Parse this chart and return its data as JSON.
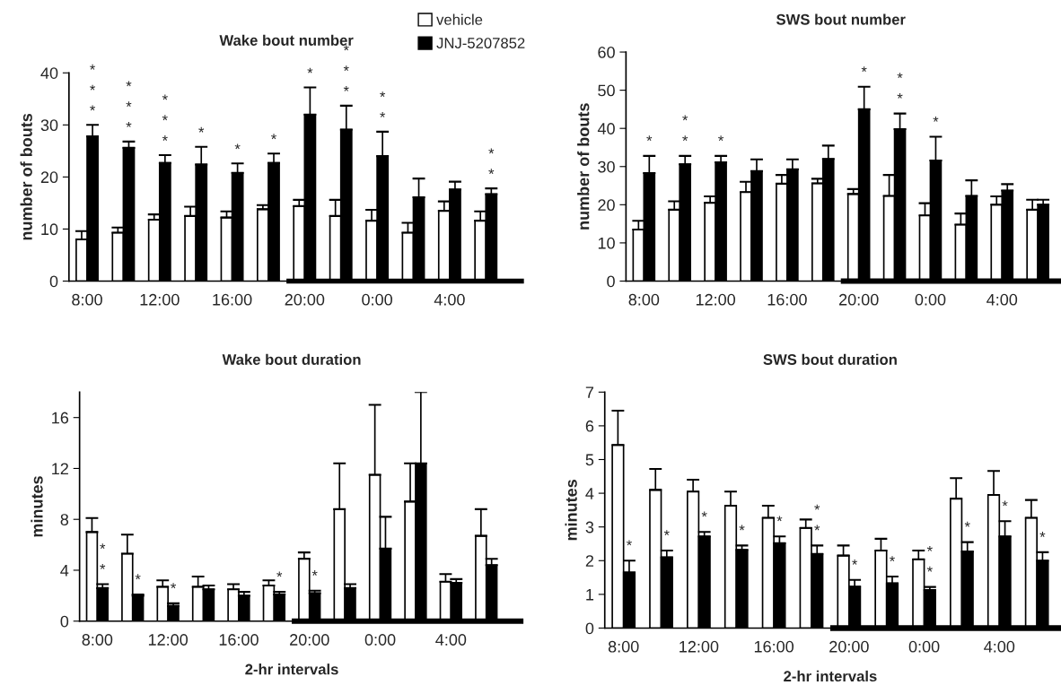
{
  "chart_data": [
    {
      "type": "bar",
      "title": "Wake bout number",
      "ylabel": "number of bouts",
      "legend": "top right",
      "categories": [
        "8:00",
        null,
        "12:00",
        null,
        "16:00",
        null,
        "20:00",
        null,
        "0:00",
        null,
        "4:00",
        null
      ],
      "ylim": [
        0,
        40
      ],
      "yticks": [
        0,
        10,
        20,
        30,
        40
      ],
      "series": [
        {
          "name": "vehicle",
          "color": "#ffffff",
          "values": [
            8.0,
            9.3,
            11.8,
            12.5,
            12.2,
            13.8,
            14.4,
            12.5,
            11.6,
            9.3,
            13.5,
            11.6
          ],
          "errors": [
            [
              8.0,
              9.6
            ],
            [
              9.3,
              10.3
            ],
            [
              11.8,
              12.8
            ],
            [
              12.5,
              14.3
            ],
            [
              12.2,
              13.4
            ],
            [
              13.8,
              14.6
            ],
            [
              14.4,
              15.6
            ],
            [
              12.5,
              15.6
            ],
            [
              11.6,
              13.7
            ],
            [
              9.3,
              11.2
            ],
            [
              13.5,
              15.3
            ],
            [
              11.6,
              13.4
            ]
          ]
        },
        {
          "name": "JNJ-5207852",
          "color": "#000000",
          "values": [
            27.8,
            25.6,
            22.7,
            22.4,
            20.8,
            22.7,
            32.0,
            29.1,
            24.0,
            16.1,
            17.6,
            16.7
          ],
          "errors": [
            [
              27.8,
              30.0
            ],
            [
              25.6,
              26.8
            ],
            [
              22.7,
              24.2
            ],
            [
              22.4,
              25.8
            ],
            [
              20.8,
              22.6
            ],
            [
              22.7,
              24.5
            ],
            [
              32.0,
              37.2
            ],
            [
              29.1,
              33.7
            ],
            [
              24.0,
              28.7
            ],
            [
              16.1,
              19.7
            ],
            [
              17.6,
              19.1
            ],
            [
              16.7,
              17.8
            ]
          ],
          "value_labels": [
            "*\n*\n*",
            "*\n*\n*",
            "*\n*\n*",
            "*",
            "*",
            "*",
            "*",
            "*\n*\n*",
            "*\n*",
            null,
            null,
            "*\n*"
          ]
        }
      ]
    },
    {
      "type": "bar",
      "title": "SWS bout number",
      "ylabel": "number of bouts",
      "categories": [
        "8:00",
        null,
        "12:00",
        null,
        "16:00",
        null,
        "20:00",
        null,
        "0:00",
        null,
        "4:00",
        null
      ],
      "ylim": [
        0,
        60
      ],
      "yticks": [
        0,
        10,
        20,
        30,
        40,
        50,
        60
      ],
      "series": [
        {
          "color": "#ffffff",
          "values": [
            13.5,
            18.7,
            20.5,
            23.3,
            25.5,
            25.6,
            22.8,
            22.3,
            17.2,
            14.8,
            20.0,
            18.7
          ],
          "errors": [
            [
              13.5,
              15.8
            ],
            [
              18.7,
              20.9
            ],
            [
              20.5,
              22.2
            ],
            [
              23.3,
              26.0
            ],
            [
              25.5,
              27.8
            ],
            [
              25.6,
              26.8
            ],
            [
              22.8,
              24.1
            ],
            [
              22.3,
              27.8
            ],
            [
              17.2,
              20.4
            ],
            [
              14.8,
              17.7
            ],
            [
              20.0,
              22.2
            ],
            [
              18.7,
              21.3
            ]
          ]
        },
        {
          "color": "#000000",
          "values": [
            28.3,
            30.6,
            31.1,
            28.8,
            29.3,
            32.0,
            45.0,
            39.8,
            31.6,
            22.3,
            23.7,
            20.0
          ],
          "errors": [
            [
              28.3,
              32.8
            ],
            [
              30.6,
              32.8
            ],
            [
              31.1,
              32.8
            ],
            [
              28.8,
              31.9
            ],
            [
              29.3,
              31.9
            ],
            [
              32.0,
              35.5
            ],
            [
              45.0,
              50.9
            ],
            [
              39.8,
              43.9
            ],
            [
              31.6,
              37.8
            ],
            [
              22.3,
              26.4
            ],
            [
              23.7,
              25.4
            ],
            [
              20.0,
              21.3
            ]
          ],
          "value_labels": [
            "*",
            "*\n*",
            "*",
            null,
            null,
            null,
            "*",
            "*\n*",
            "*",
            null,
            null,
            null
          ]
        }
      ]
    },
    {
      "type": "bar",
      "title": "Wake bout duration",
      "ylabel": "minutes",
      "xlabel": "2-hr intervals",
      "categories": [
        "8:00",
        null,
        "12:00",
        null,
        "16:00",
        null,
        "20:00",
        null,
        "0:00",
        null,
        "4:00",
        null
      ],
      "ylim": [
        0,
        18
      ],
      "yticks": [
        0,
        4,
        8,
        12,
        16
      ],
      "series": [
        {
          "color": "#ffffff",
          "values": [
            7.0,
            5.3,
            2.7,
            2.7,
            2.5,
            2.8,
            4.9,
            8.8,
            11.5,
            9.4,
            3.1,
            6.7
          ],
          "errors": [
            [
              7.0,
              8.1
            ],
            [
              5.3,
              6.8
            ],
            [
              2.7,
              3.2
            ],
            [
              2.7,
              3.5
            ],
            [
              2.5,
              2.9
            ],
            [
              2.8,
              3.2
            ],
            [
              4.9,
              5.4
            ],
            [
              8.8,
              12.4
            ],
            [
              11.5,
              17.0
            ],
            [
              9.4,
              12.4
            ],
            [
              3.1,
              3.7
            ],
            [
              6.7,
              8.8
            ]
          ]
        },
        {
          "color": "#000000",
          "values": [
            2.6,
            2.0,
            1.2,
            2.5,
            2.0,
            2.1,
            2.2,
            2.6,
            5.7,
            12.4,
            3.0,
            4.4
          ],
          "errors": [
            [
              2.6,
              2.9
            ],
            [
              2.0,
              2.1
            ],
            [
              1.2,
              1.4
            ],
            [
              2.5,
              2.8
            ],
            [
              2.0,
              2.3
            ],
            [
              2.1,
              2.3
            ],
            [
              2.2,
              2.4
            ],
            [
              2.6,
              2.9
            ],
            [
              5.7,
              8.2
            ],
            [
              12.4,
              18.0
            ],
            [
              3.0,
              3.3
            ],
            [
              4.4,
              4.9
            ]
          ],
          "value_labels": [
            "*\n*",
            "*",
            "*",
            null,
            null,
            "*",
            "*",
            null,
            null,
            null,
            null,
            null
          ]
        }
      ]
    },
    {
      "type": "bar",
      "title": "SWS bout duration",
      "ylabel": "minutes",
      "xlabel": "2-hr intervals",
      "categories": [
        "8:00",
        null,
        "12:00",
        null,
        "16:00",
        null,
        "20:00",
        null,
        "0:00",
        null,
        "4:00",
        null
      ],
      "ylim": [
        0,
        7
      ],
      "yticks": [
        0,
        1,
        2,
        3,
        4,
        5,
        6,
        7
      ],
      "series": [
        {
          "color": "#ffffff",
          "values": [
            5.43,
            4.1,
            4.05,
            3.63,
            3.27,
            2.97,
            2.15,
            2.3,
            2.04,
            3.84,
            3.95,
            3.27
          ],
          "errors": [
            [
              5.43,
              6.45
            ],
            [
              4.1,
              4.72
            ],
            [
              4.05,
              4.4
            ],
            [
              3.63,
              4.05
            ],
            [
              3.27,
              3.63
            ],
            [
              2.97,
              3.22
            ],
            [
              2.15,
              2.45
            ],
            [
              2.3,
              2.65
            ],
            [
              2.04,
              2.3
            ],
            [
              3.84,
              4.45
            ],
            [
              3.95,
              4.66
            ],
            [
              3.27,
              3.8
            ]
          ]
        },
        {
          "color": "#000000",
          "values": [
            1.65,
            2.1,
            2.72,
            2.32,
            2.52,
            2.2,
            1.23,
            1.33,
            1.13,
            2.27,
            2.72,
            2.0
          ],
          "errors": [
            [
              1.65,
              2.0
            ],
            [
              2.1,
              2.3
            ],
            [
              2.72,
              2.85
            ],
            [
              2.32,
              2.45
            ],
            [
              2.52,
              2.72
            ],
            [
              2.2,
              2.45
            ],
            [
              1.23,
              1.43
            ],
            [
              1.33,
              1.53
            ],
            [
              1.13,
              1.22
            ],
            [
              2.27,
              2.55
            ],
            [
              2.72,
              3.17
            ],
            [
              2.0,
              2.25
            ]
          ],
          "value_labels": [
            "*",
            "*",
            "*",
            "*",
            "*",
            "*\n*",
            "*",
            "*",
            "*\n*",
            "*",
            "*",
            "*"
          ]
        }
      ]
    }
  ]
}
